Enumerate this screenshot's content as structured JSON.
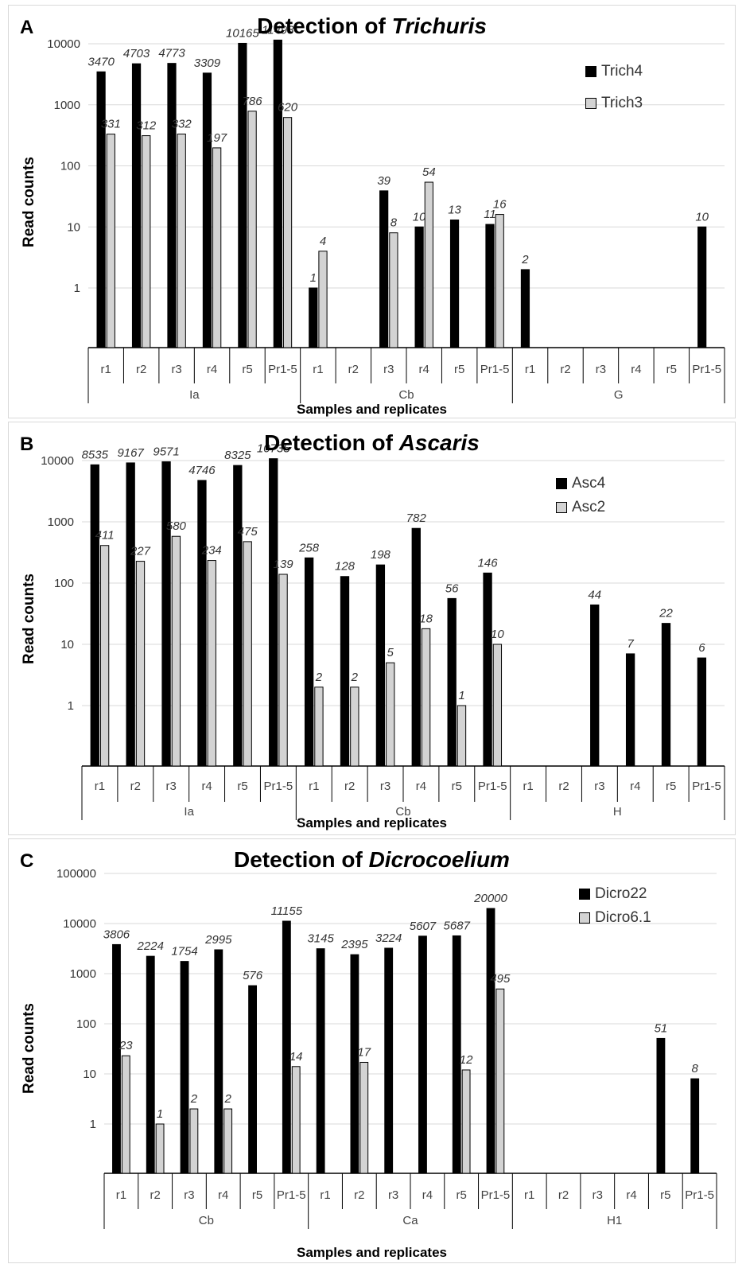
{
  "figure": {
    "colors": {
      "series1": "#000000",
      "series2": "#d3d3d3",
      "grid": "#d9d9d9",
      "axis": "#000000"
    }
  },
  "chart_data": [
    {
      "type": "bar",
      "panel_letter": "A",
      "title_prefix": "Detection of ",
      "title_italic": "Trichuris",
      "ylabel": "Read counts",
      "xlabel": "Samples and replicates",
      "yscale": "log",
      "ylim": [
        1,
        10000
      ],
      "yticks": [
        1,
        10,
        100,
        1000,
        10000
      ],
      "ytick_labels": [
        "1",
        "10",
        "100",
        "1000",
        "10000"
      ],
      "grid": true,
      "legend_position": "top-right",
      "groups": [
        "Ia",
        "Cb",
        "G"
      ],
      "categories": [
        "r1",
        "r2",
        "r3",
        "r4",
        "r5",
        "Pr1-5",
        "r1",
        "r2",
        "r3",
        "r4",
        "r5",
        "Pr1-5",
        "r1",
        "r2",
        "r3",
        "r4",
        "r5",
        "Pr1-5"
      ],
      "series": [
        {
          "name": "Trich4",
          "color": "#000000",
          "values": [
            3470,
            4703,
            4773,
            3309,
            10165,
            11498,
            1,
            null,
            39,
            10,
            13,
            11,
            2,
            null,
            null,
            null,
            null,
            10
          ]
        },
        {
          "name": "Trich3",
          "color": "#d3d3d3",
          "values": [
            331,
            312,
            332,
            197,
            786,
            620,
            4,
            null,
            8,
            54,
            null,
            16,
            null,
            null,
            null,
            null,
            null,
            null
          ]
        }
      ]
    },
    {
      "type": "bar",
      "panel_letter": "B",
      "title_prefix": "Detection of ",
      "title_italic": "Ascaris",
      "ylabel": "Read counts",
      "xlabel": "Samples and replicates",
      "yscale": "log",
      "ylim": [
        1,
        10000
      ],
      "yticks": [
        1,
        10,
        100,
        1000,
        10000
      ],
      "ytick_labels": [
        "1",
        "10",
        "100",
        "1000",
        "10000"
      ],
      "grid": true,
      "legend_position": "top-right",
      "groups": [
        "Ia",
        "Cb",
        "H"
      ],
      "categories": [
        "r1",
        "r2",
        "r3",
        "r4",
        "r5",
        "Pr1-5",
        "r1",
        "r2",
        "r3",
        "r4",
        "r5",
        "Pr1-5",
        "r1",
        "r2",
        "r3",
        "r4",
        "r5",
        "Pr1-5"
      ],
      "series": [
        {
          "name": "Asc4",
          "color": "#000000",
          "values": [
            8535,
            9167,
            9571,
            4746,
            8325,
            10735,
            258,
            128,
            198,
            782,
            56,
            146,
            null,
            null,
            44,
            7,
            22,
            6
          ]
        },
        {
          "name": "Asc2",
          "color": "#d3d3d3",
          "values": [
            411,
            227,
            580,
            234,
            475,
            139,
            2,
            2,
            5,
            18,
            1,
            10,
            null,
            null,
            null,
            null,
            null,
            null
          ]
        }
      ]
    },
    {
      "type": "bar",
      "panel_letter": "C",
      "title_prefix": "Detection of ",
      "title_italic": "Dicrocoelium",
      "ylabel": "Read counts",
      "xlabel": "Samples and replicates",
      "yscale": "log",
      "ylim": [
        1,
        100000
      ],
      "yticks": [
        1,
        10,
        100,
        1000,
        10000,
        100000
      ],
      "ytick_labels": [
        "1",
        "10",
        "100",
        "1000",
        "10000",
        "100000"
      ],
      "grid": true,
      "legend_position": "top-right",
      "groups": [
        "Cb",
        "Ca",
        "H1"
      ],
      "categories": [
        "r1",
        "r2",
        "r3",
        "r4",
        "r5",
        "Pr1-5",
        "r1",
        "r2",
        "r3",
        "r4",
        "r5",
        "Pr1-5",
        "r1",
        "r2",
        "r3",
        "r4",
        "r5",
        "Pr1-5"
      ],
      "series": [
        {
          "name": "Dicro22",
          "color": "#000000",
          "values": [
            3806,
            2224,
            1754,
            2995,
            576,
            11155,
            3145,
            2395,
            3224,
            5607,
            5687,
            20000,
            null,
            null,
            null,
            null,
            51,
            8
          ]
        },
        {
          "name": "Dicro6.1",
          "color": "#d3d3d3",
          "values": [
            23,
            1,
            2,
            2,
            null,
            14,
            null,
            17,
            null,
            null,
            12,
            495,
            null,
            null,
            null,
            null,
            null,
            null
          ]
        }
      ]
    }
  ]
}
